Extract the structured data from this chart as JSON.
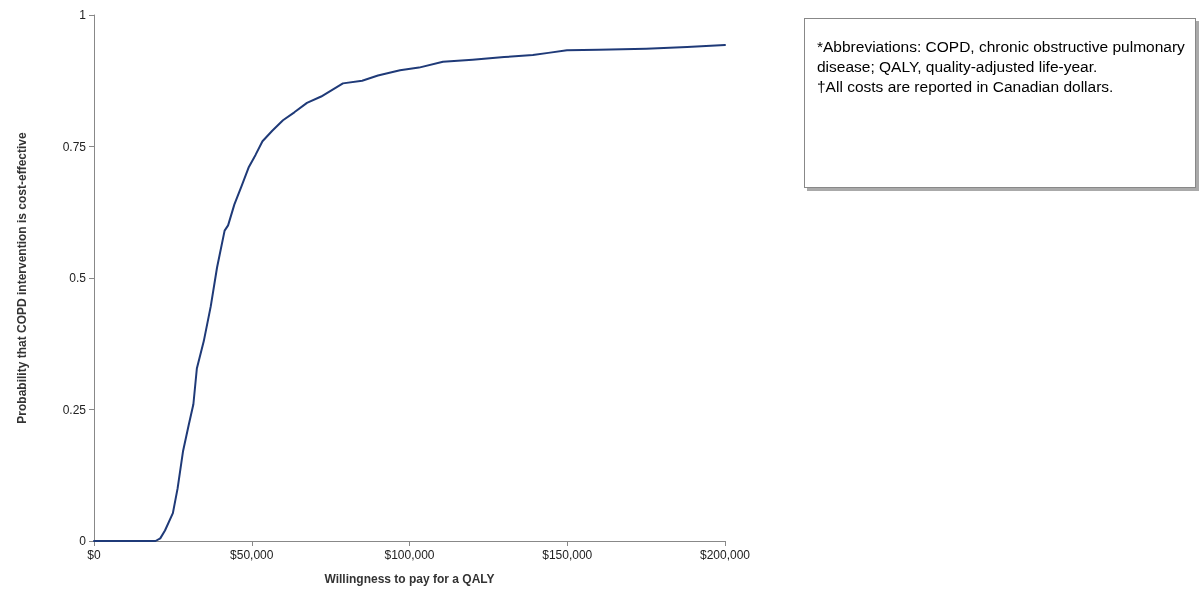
{
  "chart_data": {
    "type": "line",
    "xlabel": "Willingness to pay for a QALY",
    "ylabel": "Probability that COPD intervention is cost-effective",
    "annotations": [
      "*Abbreviations: COPD, chronic obstructive pulmonary disease; QALY, quality-adjusted life-year.\n†All costs are reported in Canadian dollars."
    ],
    "series": [
      {
        "color": "#1f3a78",
        "x": [
          0,
          19500,
          21000,
          22500,
          25000,
          26500,
          28200,
          30000,
          31500,
          32600,
          34800,
          37000,
          39000,
          41400,
          42500,
          44500,
          46800,
          49000,
          51200,
          53400,
          56500,
          59900,
          63500,
          67500,
          72000,
          78900,
          85000,
          90000,
          97000,
          103000,
          110600,
          120000,
          130000,
          139100,
          144000,
          149900,
          160000,
          175000,
          188000,
          200000
        ],
        "values": [
          0,
          0,
          0.005,
          0.02,
          0.053,
          0.1,
          0.17,
          0.22,
          0.26,
          0.328,
          0.38,
          0.446,
          0.52,
          0.59,
          0.6,
          0.64,
          0.675,
          0.71,
          0.734,
          0.76,
          0.78,
          0.8,
          0.815,
          0.833,
          0.845,
          0.87,
          0.875,
          0.885,
          0.895,
          0.9,
          0.911,
          0.915,
          0.92,
          0.924,
          0.928,
          0.933,
          0.934,
          0.936,
          0.939,
          0.943
        ]
      }
    ],
    "xlim": [
      0,
      200000
    ],
    "xticks": [
      {
        "value": 0,
        "label": "$0"
      },
      {
        "value": 50000,
        "label": "$50,000"
      },
      {
        "value": 100000,
        "label": "$100,000"
      },
      {
        "value": 150000,
        "label": "$150,000"
      },
      {
        "value": 200000,
        "label": "$200,000"
      }
    ],
    "ylim": [
      0,
      1
    ],
    "yticks": [
      0,
      0.25,
      0.5,
      0.75,
      1
    ],
    "grid": false,
    "marker": "none",
    "line_style": "solid"
  }
}
